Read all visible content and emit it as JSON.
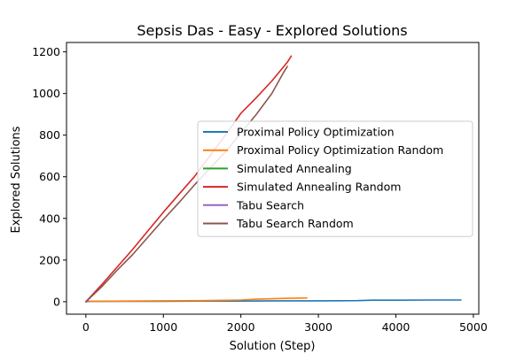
{
  "chart_data": {
    "type": "line",
    "title": "Sepsis Das - Easy - Explored Solutions",
    "xlabel": "Solution (Step)",
    "ylabel": "Explored Solutions",
    "xlim": [
      -250,
      5070
    ],
    "ylim": [
      -60,
      1245
    ],
    "xticks": [
      0,
      1000,
      2000,
      3000,
      4000,
      5000
    ],
    "yticks": [
      0,
      200,
      400,
      600,
      800,
      1000,
      1200
    ],
    "xtick_labels": [
      "0",
      "1000",
      "2000",
      "3000",
      "4000",
      "5000"
    ],
    "ytick_labels": [
      "0",
      "200",
      "400",
      "600",
      "800",
      "1000",
      "1200"
    ],
    "grid": false,
    "legend_position": "center-right",
    "series": [
      {
        "name": "Proximal Policy Optimization",
        "color": "#1f77b4",
        "points": [
          [
            0,
            1
          ],
          [
            500,
            2
          ],
          [
            1000,
            2
          ],
          [
            1500,
            3
          ],
          [
            2000,
            3
          ],
          [
            2500,
            4
          ],
          [
            3000,
            4
          ],
          [
            3500,
            5
          ],
          [
            3700,
            7
          ],
          [
            4000,
            7
          ],
          [
            4500,
            8
          ],
          [
            4840,
            8
          ]
        ]
      },
      {
        "name": "Proximal Policy Optimization Random",
        "color": "#ff7f0e",
        "points": [
          [
            0,
            1
          ],
          [
            500,
            3
          ],
          [
            1000,
            4
          ],
          [
            1500,
            5
          ],
          [
            2000,
            8
          ],
          [
            2200,
            12
          ],
          [
            2400,
            14
          ],
          [
            2600,
            16
          ],
          [
            2850,
            18
          ]
        ]
      },
      {
        "name": "Simulated Annealing",
        "color": "#2ca02c",
        "points": [
          [
            0,
            0
          ],
          [
            30,
            1
          ]
        ]
      },
      {
        "name": "Simulated Annealing Random",
        "color": "#d62728",
        "points": [
          [
            0,
            0
          ],
          [
            200,
            80
          ],
          [
            400,
            165
          ],
          [
            600,
            250
          ],
          [
            800,
            340
          ],
          [
            1000,
            430
          ],
          [
            1200,
            515
          ],
          [
            1400,
            600
          ],
          [
            1600,
            700
          ],
          [
            1800,
            800
          ],
          [
            2000,
            905
          ],
          [
            2200,
            980
          ],
          [
            2400,
            1060
          ],
          [
            2600,
            1150
          ],
          [
            2650,
            1180
          ]
        ]
      },
      {
        "name": "Tabu Search",
        "color": "#9467bd",
        "points": [
          [
            0,
            0
          ],
          [
            30,
            1
          ]
        ]
      },
      {
        "name": "Tabu Search Random",
        "color": "#8c564b",
        "points": [
          [
            0,
            0
          ],
          [
            200,
            70
          ],
          [
            400,
            150
          ],
          [
            600,
            225
          ],
          [
            800,
            310
          ],
          [
            1000,
            395
          ],
          [
            1200,
            475
          ],
          [
            1400,
            560
          ],
          [
            1600,
            640
          ],
          [
            1800,
            720
          ],
          [
            2000,
            810
          ],
          [
            2200,
            900
          ],
          [
            2400,
            1000
          ],
          [
            2550,
            1100
          ],
          [
            2600,
            1130
          ]
        ]
      }
    ]
  }
}
